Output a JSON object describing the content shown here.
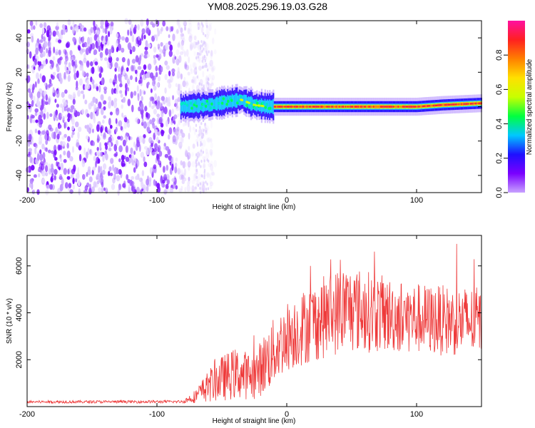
{
  "title": "YM08.2025.296.19.03.G28",
  "chart_data": [
    {
      "type": "heatmap",
      "name": "spectrogram",
      "xlabel": "Height of straight line (km)",
      "ylabel": "Frequency (Hz)",
      "xlim": [
        -200,
        150
      ],
      "ylim": [
        -50,
        50
      ],
      "xticks": [
        -200,
        -100,
        0,
        100
      ],
      "xtick_labels": [
        "-200",
        "-100",
        "0",
        "100"
      ],
      "yticks": [
        -40,
        -20,
        0,
        20,
        40
      ],
      "ytick_labels": [
        "-40",
        "-20",
        "0",
        "20",
        "40"
      ],
      "colorbar": {
        "label": "Normalized spectral amplitude",
        "range": [
          0,
          1
        ],
        "ticks": [
          0.0,
          0.2,
          0.4,
          0.6,
          0.8
        ],
        "tick_labels": [
          "0.0",
          "0.2",
          "0.4",
          "0.6",
          "0.8"
        ],
        "colors": [
          "#c8a2ff",
          "#7a00ff",
          "#1e10ff",
          "#00c8ff",
          "#00ff40",
          "#c8ff00",
          "#ffe000",
          "#ff8000",
          "#ff2020",
          "#ff10a0"
        ]
      },
      "noise_region_x": [
        -200,
        -70
      ],
      "signal_start_x": -82,
      "signal_track": [
        {
          "x": -80,
          "f": 0
        },
        {
          "x": -60,
          "f": 1
        },
        {
          "x": -45,
          "f": 3
        },
        {
          "x": -35,
          "f": 4
        },
        {
          "x": -25,
          "f": 1
        },
        {
          "x": -15,
          "f": 0
        },
        {
          "x": 0,
          "f": 0
        },
        {
          "x": 50,
          "f": 0
        },
        {
          "x": 100,
          "f": 0
        },
        {
          "x": 120,
          "f": 1
        },
        {
          "x": 150,
          "f": 2
        }
      ]
    },
    {
      "type": "line",
      "name": "snr",
      "xlabel": "Height of straight line (km)",
      "ylabel": "SNR (10 * v/v)",
      "xlim": [
        -200,
        150
      ],
      "ylim": [
        0,
        7300
      ],
      "xticks": [
        -200,
        -100,
        0,
        100
      ],
      "xtick_labels": [
        "-200",
        "-100",
        "0",
        "100"
      ],
      "yticks": [
        2000,
        4000,
        6000
      ],
      "ytick_labels": [
        "2000",
        "4000",
        "6000"
      ],
      "line_color": "#ee3a3a",
      "envelope": [
        {
          "x": -200,
          "mean": 200,
          "amp": 60
        },
        {
          "x": -80,
          "mean": 210,
          "amp": 60
        },
        {
          "x": -70,
          "mean": 450,
          "amp": 300
        },
        {
          "x": -55,
          "mean": 1100,
          "amp": 900
        },
        {
          "x": -40,
          "mean": 1400,
          "amp": 1100
        },
        {
          "x": -25,
          "mean": 1300,
          "amp": 1000
        },
        {
          "x": -15,
          "mean": 2000,
          "amp": 1400
        },
        {
          "x": 0,
          "mean": 3000,
          "amp": 1500
        },
        {
          "x": 20,
          "mean": 3600,
          "amp": 1700
        },
        {
          "x": 45,
          "mean": 4200,
          "amp": 1900
        },
        {
          "x": 80,
          "mean": 3900,
          "amp": 1600
        },
        {
          "x": 110,
          "mean": 3700,
          "amp": 1500
        },
        {
          "x": 150,
          "mean": 3600,
          "amp": 1500
        }
      ]
    }
  ]
}
